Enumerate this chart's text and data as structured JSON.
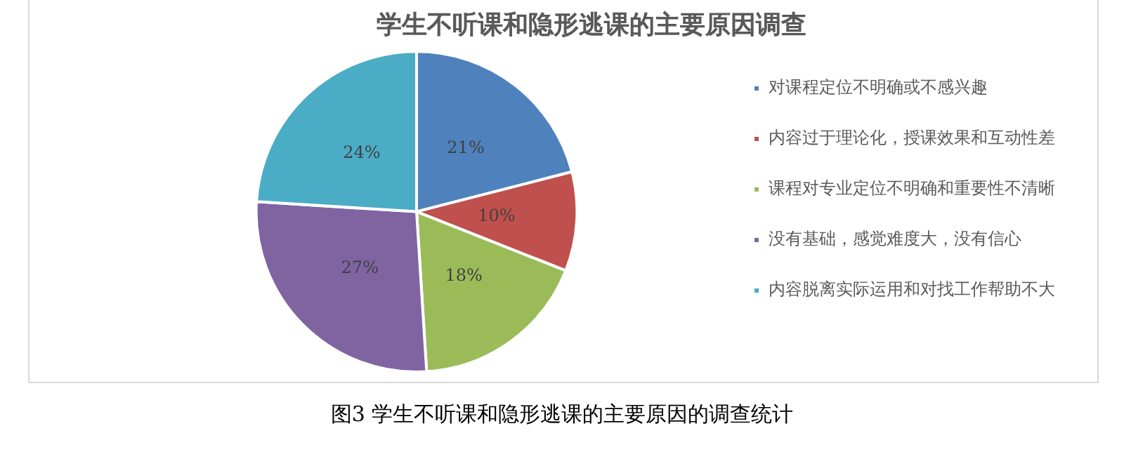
{
  "chart_data": {
    "type": "pie",
    "title": "学生不听课和隐形逃课的主要原因调查",
    "categories": [
      "对课程定位不明确或不感兴趣",
      "内容过于理论化，授课效果和互动性差",
      "课程对专业定位不明确和重要性不清晰",
      "没有基础，感觉难度大，没有信心",
      "内容脱离实际运用和对找工作帮助不大"
    ],
    "values": [
      21,
      10,
      18,
      27,
      24
    ],
    "value_labels": [
      "21%",
      "10%",
      "18%",
      "27%",
      "24%"
    ],
    "colors": [
      "#4f81bd",
      "#c0504d",
      "#9bbb59",
      "#8064a2",
      "#4bacc6"
    ],
    "legend": "right",
    "annotations": [
      "图3 学生不听课和隐形逃课的主要原因的调查统计"
    ]
  }
}
